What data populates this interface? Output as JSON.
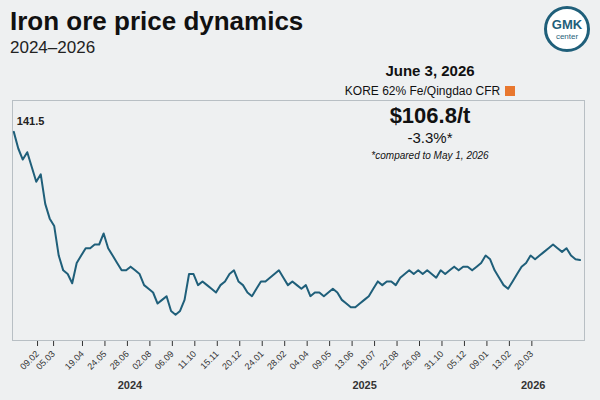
{
  "chart_data": {
    "type": "line",
    "title": "Iron ore price dynamics",
    "subtitle": "2024–2026",
    "logo": "GMK",
    "logo_sub": "center",
    "color": "#1f5f7a",
    "annotation": {
      "date": "June 3, 2026",
      "index": "KORE 62% Fe/Qingdao CFR",
      "price": "$106.8/t",
      "change": "-3.3%*",
      "note": "*compared to May 1, 2026",
      "color": "#e8772e"
    },
    "peak_label": {
      "x": "2024-01-03",
      "value": 141.5
    },
    "x": [
      "2024-01-03",
      "2024-01-10",
      "2024-01-17",
      "2024-01-24",
      "2024-01-31",
      "2024-02-07",
      "2024-02-14",
      "2024-02-21",
      "2024-02-28",
      "2024-03-06",
      "2024-03-13",
      "2024-03-20",
      "2024-03-27",
      "2024-04-03",
      "2024-04-10",
      "2024-04-17",
      "2024-04-24",
      "2024-05-01",
      "2024-05-08",
      "2024-05-15",
      "2024-05-22",
      "2024-05-29",
      "2024-06-05",
      "2024-06-12",
      "2024-06-19",
      "2024-06-26",
      "2024-07-03",
      "2024-07-10",
      "2024-07-17",
      "2024-07-24",
      "2024-07-31",
      "2024-08-07",
      "2024-08-14",
      "2024-08-21",
      "2024-08-28",
      "2024-09-04",
      "2024-09-11",
      "2024-09-18",
      "2024-09-25",
      "2024-10-02",
      "2024-10-09",
      "2024-10-16",
      "2024-10-23",
      "2024-10-30",
      "2024-11-06",
      "2024-11-13",
      "2024-11-20",
      "2024-11-27",
      "2024-12-04",
      "2024-12-11",
      "2024-12-18",
      "2024-12-25",
      "2025-01-01",
      "2025-01-08",
      "2025-01-15",
      "2025-01-22",
      "2025-01-29",
      "2025-02-05",
      "2025-02-12",
      "2025-02-19",
      "2025-02-26",
      "2025-03-05",
      "2025-03-12",
      "2025-03-19",
      "2025-03-26",
      "2025-04-02",
      "2025-04-09",
      "2025-04-16",
      "2025-04-23",
      "2025-04-30",
      "2025-05-07",
      "2025-05-14",
      "2025-05-21",
      "2025-05-28",
      "2025-06-04",
      "2025-06-11",
      "2025-06-18",
      "2025-06-25",
      "2025-07-02",
      "2025-07-09",
      "2025-07-16",
      "2025-07-23",
      "2025-07-30",
      "2025-08-06",
      "2025-08-13",
      "2025-08-20",
      "2025-08-27",
      "2025-09-03",
      "2025-09-10",
      "2025-09-17",
      "2025-09-24",
      "2025-10-01",
      "2025-10-08",
      "2025-10-15",
      "2025-10-22",
      "2025-10-29",
      "2025-11-05",
      "2025-11-12",
      "2025-11-19",
      "2025-11-26",
      "2025-12-03",
      "2025-12-10",
      "2025-12-17",
      "2025-12-24",
      "2025-12-31",
      "2026-01-07",
      "2026-01-14",
      "2026-01-21",
      "2026-01-28",
      "2026-02-04",
      "2026-02-11",
      "2026-02-18",
      "2026-02-25",
      "2026-03-04",
      "2026-03-11",
      "2026-03-18",
      "2026-03-25",
      "2026-04-01",
      "2026-04-08",
      "2026-04-15",
      "2026-04-22",
      "2026-04-29",
      "2026-05-06",
      "2026-05-13",
      "2026-05-20",
      "2026-05-27",
      "2026-06-03"
    ],
    "values": [
      141.5,
      137,
      134,
      136,
      132,
      128,
      130,
      122,
      118,
      116,
      108,
      104,
      103,
      100.5,
      106,
      108,
      110,
      110,
      111,
      111,
      114,
      110,
      108,
      106,
      104,
      104,
      105,
      104,
      103,
      100,
      99,
      98,
      95,
      96,
      97,
      93,
      92,
      93,
      96,
      103,
      103,
      100,
      101,
      100,
      99,
      98,
      100,
      101,
      103,
      104,
      101,
      100,
      98,
      97,
      99,
      101,
      101,
      102,
      103,
      104,
      102,
      100,
      101,
      100,
      99,
      100,
      97,
      98,
      98,
      97,
      98,
      99,
      98,
      96,
      95,
      94,
      94,
      95,
      96,
      97,
      99,
      101,
      100,
      101,
      101,
      100,
      102,
      103,
      104,
      103,
      104,
      103,
      104,
      103,
      102,
      104,
      103,
      104,
      105,
      104,
      105,
      105,
      104,
      105,
      106,
      108,
      107,
      104,
      102,
      100,
      99,
      101,
      103,
      105,
      106,
      108,
      107,
      108,
      109,
      110,
      111,
      110,
      109,
      110,
      108,
      107,
      106.8
    ],
    "xlim": [
      "2024-01-01",
      "2026-06-10"
    ],
    "xticks": [
      {
        "value": "2024-02-09",
        "label": "09.02"
      },
      {
        "value": "2024-03-05",
        "label": "05.03"
      },
      {
        "value": "2024-04-19",
        "label": "19.04"
      },
      {
        "value": "2024-05-24",
        "label": "24.05"
      },
      {
        "value": "2024-06-28",
        "label": "28.06"
      },
      {
        "value": "2024-08-02",
        "label": "02.08"
      },
      {
        "value": "2024-09-06",
        "label": "06.09"
      },
      {
        "value": "2024-10-11",
        "label": "11.10"
      },
      {
        "value": "2024-11-15",
        "label": "15.11"
      },
      {
        "value": "2024-12-20",
        "label": "20.12"
      },
      {
        "value": "2025-01-24",
        "label": "24.01"
      },
      {
        "value": "2025-02-28",
        "label": "28.02"
      },
      {
        "value": "2025-04-04",
        "label": "04.04"
      },
      {
        "value": "2025-05-09",
        "label": "09.05"
      },
      {
        "value": "2025-06-13",
        "label": "13.06"
      },
      {
        "value": "2025-07-18",
        "label": "18.07"
      },
      {
        "value": "2025-08-22",
        "label": "22.08"
      },
      {
        "value": "2025-09-26",
        "label": "26.09"
      },
      {
        "value": "2025-10-31",
        "label": "31.10"
      },
      {
        "value": "2025-12-05",
        "label": "05.12"
      },
      {
        "value": "2026-01-09",
        "label": "09.01"
      },
      {
        "value": "2026-02-13",
        "label": "13.02"
      },
      {
        "value": "2026-03-20",
        "label": "20.03"
      }
    ],
    "x_groups": [
      "2024",
      "2025",
      "2026"
    ],
    "ylim": [
      85,
      150
    ],
    "tick_labels": "x",
    "grid": false
  }
}
